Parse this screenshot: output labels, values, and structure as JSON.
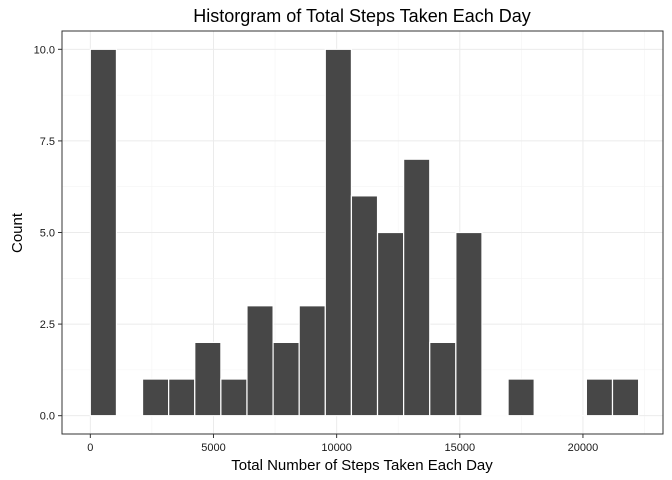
{
  "chart_data": {
    "type": "bar",
    "title": "Historgram of Total Steps Taken Each Day",
    "xlabel": "Total Number of Steps Taken Each Day",
    "ylabel": "Count",
    "xlim": [
      -1150,
      23250
    ],
    "ylim": [
      -0.5,
      10.5
    ],
    "x_ticks": [
      0,
      5000,
      10000,
      15000,
      20000
    ],
    "x_tick_labels": [
      "0",
      "5000",
      "10000",
      "15000",
      "20000"
    ],
    "y_ticks": [
      0,
      2.5,
      5,
      7.5,
      10
    ],
    "y_tick_labels": [
      "0.0",
      "2.5",
      "5.0",
      "7.5",
      "10.0"
    ],
    "grid": true,
    "bar_color": "#474747",
    "bar_edge_color": "#ffffff",
    "bins": [
      {
        "x0": 0,
        "x1": 1060,
        "count": 10
      },
      {
        "x0": 1060,
        "x1": 2120,
        "count": 0
      },
      {
        "x0": 2120,
        "x1": 3180,
        "count": 1
      },
      {
        "x0": 3180,
        "x1": 4240,
        "count": 1
      },
      {
        "x0": 4240,
        "x1": 5300,
        "count": 2
      },
      {
        "x0": 5300,
        "x1": 6360,
        "count": 1
      },
      {
        "x0": 6360,
        "x1": 7420,
        "count": 3
      },
      {
        "x0": 7420,
        "x1": 8480,
        "count": 2
      },
      {
        "x0": 8480,
        "x1": 9540,
        "count": 3
      },
      {
        "x0": 9540,
        "x1": 10600,
        "count": 10
      },
      {
        "x0": 10600,
        "x1": 11660,
        "count": 6
      },
      {
        "x0": 11660,
        "x1": 12720,
        "count": 5
      },
      {
        "x0": 12720,
        "x1": 13780,
        "count": 7
      },
      {
        "x0": 13780,
        "x1": 14840,
        "count": 2
      },
      {
        "x0": 14840,
        "x1": 15900,
        "count": 5
      },
      {
        "x0": 15900,
        "x1": 16960,
        "count": 0
      },
      {
        "x0": 16960,
        "x1": 18020,
        "count": 1
      },
      {
        "x0": 18020,
        "x1": 19080,
        "count": 0
      },
      {
        "x0": 19080,
        "x1": 20140,
        "count": 0
      },
      {
        "x0": 20140,
        "x1": 21200,
        "count": 1
      },
      {
        "x0": 21200,
        "x1": 22260,
        "count": 1
      }
    ]
  }
}
